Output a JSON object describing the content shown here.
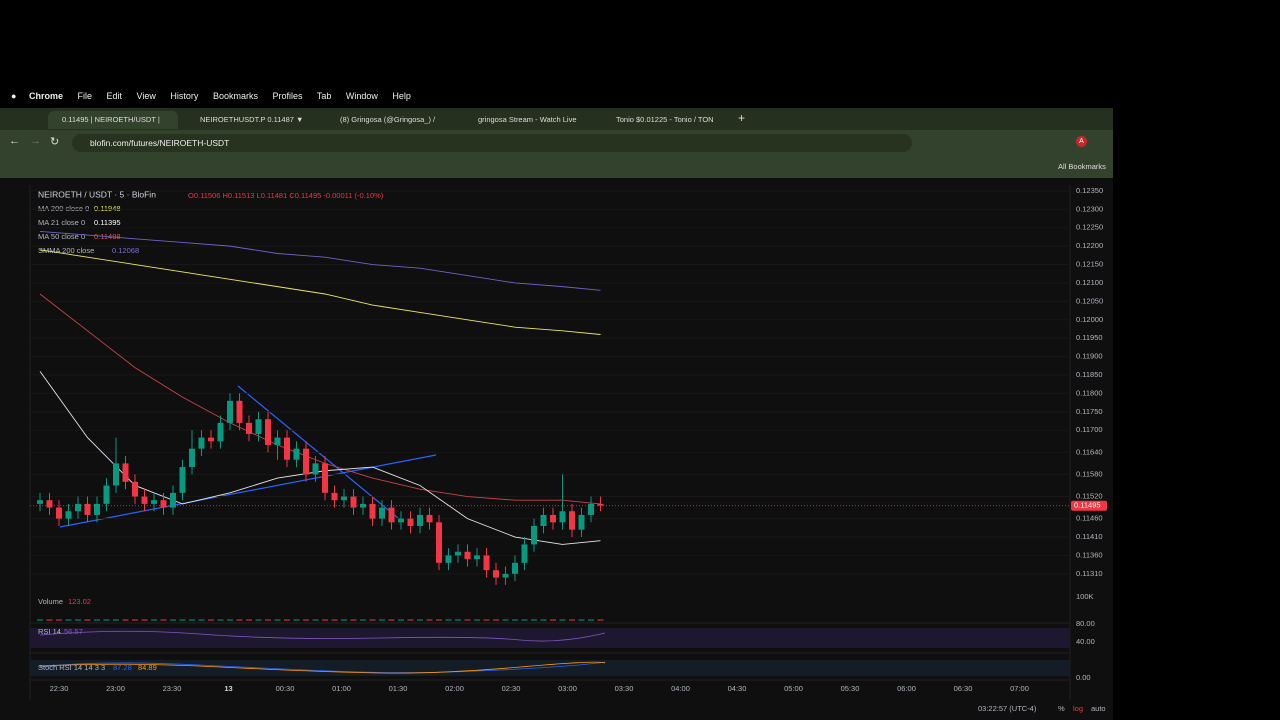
{
  "browser": {
    "menu": [
      "Chrome",
      "File",
      "Edit",
      "View",
      "History",
      "Bookmarks",
      "Profiles",
      "Tab",
      "Window",
      "Help"
    ],
    "tabs": [
      "0.11495 | NEIROETH/USDT |",
      "NEIROETHUSDT.P 0.11487 ▼",
      "(8) Gringosa (@Gringosa_) /",
      "gringosa Stream - Watch Live",
      "Tonio $0.01225 - Tonio / TON"
    ],
    "url": "blofin.com/futures/NEIROETH-USDT",
    "bookmarks": "All Bookmarks"
  },
  "chart_data": {
    "type": "candlestick",
    "title": "NEIROETH / USDT · 5 · BloFin",
    "ohlc": "O0.11506 H0.11513 L0.11481 C0.11495 -0.00011 (-0.10%)",
    "indicators": [
      {
        "label": "MA 200 close 0",
        "value_label": "0.11948",
        "color": "#e8e866"
      },
      {
        "label": "MA 21 close 0",
        "value_label": "0.11395",
        "color": "#ffffff"
      },
      {
        "label": "MA 50 close 0",
        "value_label": "0.11498",
        "color": "#d9534f"
      },
      {
        "label": "SMMA 200 close",
        "value_label": "0.12068",
        "color": "#7b6fd6"
      }
    ],
    "ylim": [
      0.11258,
      0.12366
    ],
    "yticks": [
      {
        "value": 0.1235,
        "label": "0.12350"
      },
      {
        "value": 0.123,
        "label": "0.12300"
      },
      {
        "value": 0.1225,
        "label": "0.12250"
      },
      {
        "value": 0.122,
        "label": "0.12200"
      },
      {
        "value": 0.1215,
        "label": "0.12150"
      },
      {
        "value": 0.121,
        "label": "0.12100"
      },
      {
        "value": 0.1205,
        "label": "0.12050"
      },
      {
        "value": 0.12,
        "label": "0.12000"
      },
      {
        "value": 0.1195,
        "label": "0.11950"
      },
      {
        "value": 0.119,
        "label": "0.11900"
      },
      {
        "value": 0.1185,
        "label": "0.11850"
      },
      {
        "value": 0.118,
        "label": "0.11800"
      },
      {
        "value": 0.1175,
        "label": "0.11750"
      },
      {
        "value": 0.117,
        "label": "0.11700"
      },
      {
        "value": 0.1164,
        "label": "0.11640"
      },
      {
        "value": 0.1158,
        "label": "0.11580"
      },
      {
        "value": 0.1152,
        "label": "0.11520"
      },
      {
        "value": 0.1146,
        "label": "0.11460"
      },
      {
        "value": 0.1141,
        "label": "0.11410"
      },
      {
        "value": 0.1136,
        "label": "0.11360"
      },
      {
        "value": 0.1131,
        "label": "0.11310"
      }
    ],
    "last_price": 0.11495,
    "last_price_label": "0.11495",
    "up_color": "#089981",
    "down_color": "#f23645",
    "candles": [
      [
        0.115,
        0.1153,
        0.1148,
        0.1151
      ],
      [
        0.1151,
        0.1153,
        0.1147,
        0.1149
      ],
      [
        0.1149,
        0.1151,
        0.1144,
        0.1146
      ],
      [
        0.1146,
        0.115,
        0.1144,
        0.1148
      ],
      [
        0.1148,
        0.1152,
        0.1146,
        0.115
      ],
      [
        0.115,
        0.1152,
        0.1145,
        0.1147
      ],
      [
        0.1147,
        0.1152,
        0.1145,
        0.115
      ],
      [
        0.115,
        0.1157,
        0.1148,
        0.1155
      ],
      [
        0.1155,
        0.1168,
        0.1153,
        0.1161
      ],
      [
        0.1161,
        0.1163,
        0.1154,
        0.1156
      ],
      [
        0.1156,
        0.1158,
        0.115,
        0.1152
      ],
      [
        0.1152,
        0.1154,
        0.1148,
        0.115
      ],
      [
        0.115,
        0.1153,
        0.1148,
        0.1151
      ],
      [
        0.1151,
        0.1153,
        0.1147,
        0.1149
      ],
      [
        0.1149,
        0.1155,
        0.1147,
        0.1153
      ],
      [
        0.1153,
        0.1162,
        0.1151,
        0.116
      ],
      [
        0.116,
        0.117,
        0.1158,
        0.1165
      ],
      [
        0.1165,
        0.117,
        0.1163,
        0.1168
      ],
      [
        0.1168,
        0.117,
        0.1165,
        0.1167
      ],
      [
        0.1167,
        0.1174,
        0.1165,
        0.1172
      ],
      [
        0.1172,
        0.118,
        0.117,
        0.1178
      ],
      [
        0.1178,
        0.118,
        0.117,
        0.1172
      ],
      [
        0.1172,
        0.1174,
        0.1167,
        0.1169
      ],
      [
        0.1169,
        0.1175,
        0.1167,
        0.1173
      ],
      [
        0.1173,
        0.1175,
        0.1164,
        0.1166
      ],
      [
        0.1166,
        0.117,
        0.1162,
        0.1168
      ],
      [
        0.1168,
        0.117,
        0.116,
        0.1162
      ],
      [
        0.1162,
        0.1167,
        0.116,
        0.1165
      ],
      [
        0.1165,
        0.1167,
        0.1156,
        0.1158
      ],
      [
        0.1158,
        0.1163,
        0.1156,
        0.1161
      ],
      [
        0.1161,
        0.1163,
        0.1151,
        0.1153
      ],
      [
        0.1153,
        0.1155,
        0.1149,
        0.1151
      ],
      [
        0.1151,
        0.1154,
        0.1149,
        0.1152
      ],
      [
        0.1152,
        0.1154,
        0.1147,
        0.1149
      ],
      [
        0.1149,
        0.1152,
        0.1147,
        0.115
      ],
      [
        0.115,
        0.1152,
        0.1144,
        0.1146
      ],
      [
        0.1146,
        0.1151,
        0.1144,
        0.1149
      ],
      [
        0.1149,
        0.1151,
        0.1143,
        0.1145
      ],
      [
        0.1145,
        0.1148,
        0.1143,
        0.1146
      ],
      [
        0.1146,
        0.1148,
        0.1142,
        0.1144
      ],
      [
        0.1144,
        0.1149,
        0.1142,
        0.1147
      ],
      [
        0.1147,
        0.1149,
        0.1143,
        0.1145
      ],
      [
        0.1145,
        0.1147,
        0.1132,
        0.1134
      ],
      [
        0.1134,
        0.1138,
        0.1132,
        0.1136
      ],
      [
        0.1136,
        0.1139,
        0.1134,
        0.1137
      ],
      [
        0.1137,
        0.1139,
        0.1133,
        0.1135
      ],
      [
        0.1135,
        0.1138,
        0.1133,
        0.1136
      ],
      [
        0.1136,
        0.1138,
        0.113,
        0.1132
      ],
      [
        0.1132,
        0.1134,
        0.1128,
        0.113
      ],
      [
        0.113,
        0.1133,
        0.1128,
        0.1131
      ],
      [
        0.1131,
        0.1136,
        0.1129,
        0.1134
      ],
      [
        0.1134,
        0.1141,
        0.1132,
        0.1139
      ],
      [
        0.1139,
        0.1146,
        0.1137,
        0.1144
      ],
      [
        0.1144,
        0.1149,
        0.1142,
        0.1147
      ],
      [
        0.1147,
        0.1149,
        0.1143,
        0.1145
      ],
      [
        0.1145,
        0.1158,
        0.1143,
        0.1148
      ],
      [
        0.1148,
        0.115,
        0.1141,
        0.1143
      ],
      [
        0.1143,
        0.1149,
        0.1141,
        0.1147
      ],
      [
        0.1147,
        0.1152,
        0.1145,
        0.115
      ],
      [
        0.115,
        0.1152,
        0.1148,
        0.11495
      ]
    ],
    "ma_x": [
      0,
      5,
      10,
      15,
      20,
      25,
      30,
      35,
      40,
      45,
      50,
      55,
      59
    ],
    "ma_series": [
      {
        "color": "#e8e866",
        "values": [
          0.1219,
          0.1217,
          0.1215,
          0.1213,
          0.1211,
          0.1209,
          0.1207,
          0.1204,
          0.1202,
          0.12,
          0.1198,
          0.1197,
          0.1196
        ]
      },
      {
        "color": "#6f63c9",
        "values": [
          0.1224,
          0.1223,
          0.1222,
          0.1221,
          0.122,
          0.1218,
          0.1217,
          0.1215,
          0.1214,
          0.1212,
          0.121,
          0.1209,
          0.1208
        ]
      },
      {
        "color": "#c9434f",
        "values": [
          0.1207,
          0.1197,
          0.1187,
          0.1179,
          0.1172,
          0.1166,
          0.1161,
          0.1157,
          0.1154,
          0.1152,
          0.1151,
          0.1151,
          0.115
        ]
      },
      {
        "color": "#e6e6e6",
        "values": [
          0.1186,
          0.1168,
          0.1155,
          0.115,
          0.1153,
          0.1157,
          0.1159,
          0.116,
          0.1155,
          0.1146,
          0.1141,
          0.1139,
          0.114
        ]
      }
    ],
    "x_labels": [
      "22:30",
      "23:00",
      "23:30",
      "13",
      "00:30",
      "01:00",
      "01:30",
      "02:00",
      "02:30",
      "03:00",
      "03:30",
      "04:00",
      "04:30",
      "05:00",
      "05:30",
      "06:00",
      "06:30",
      "07:00"
    ],
    "volume": {
      "label": "Volume",
      "value_label": "123.02",
      "scale_label": "100K"
    },
    "rsi": {
      "label": "RSI 14",
      "value_label": "56.57",
      "scale_labels": [
        "80.00",
        "40.00"
      ]
    },
    "stoch": {
      "label": "Stoch RSI 14 14 3 3",
      "value_labels": [
        "87.28",
        "84.89"
      ],
      "scale_label": "0.00"
    }
  },
  "footer": {
    "clock": "03:22:57 (UTC-4)",
    "percent": "%",
    "log": "log",
    "auto": "auto"
  }
}
